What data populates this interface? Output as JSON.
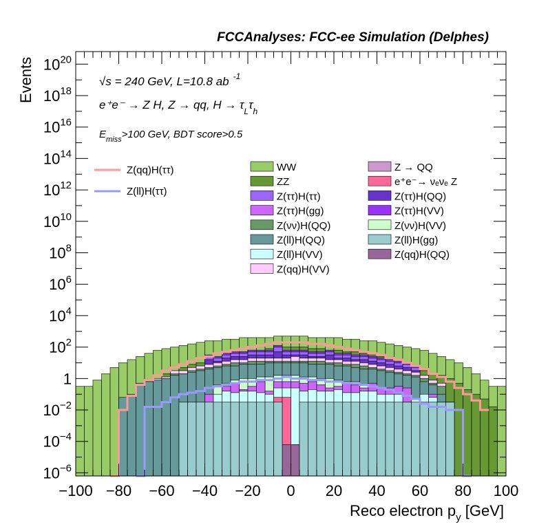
{
  "chart_data": {
    "type": "histogram-stack-log",
    "title": "FCCAnalyses: FCC-ee Simulation (Delphes)",
    "xlabel": "Reco electron p",
    "xlabel_sub": "y",
    "xlabel_unit": " [GeV]",
    "ylabel": "Events",
    "xlim": [
      -100,
      100
    ],
    "ylim_log10": [
      -6.2,
      20.8
    ],
    "x_scale": "linear",
    "y_scale": "log",
    "x_ticks": [
      -100,
      -80,
      -60,
      -40,
      -20,
      0,
      20,
      40,
      60,
      80,
      100
    ],
    "x_tick_labels": [
      "−100",
      "−80",
      "−60",
      "−40",
      "−20",
      "0",
      "20",
      "40",
      "60",
      "80",
      "100"
    ],
    "y_ticks_log10": [
      -6,
      -4,
      -2,
      0,
      2,
      4,
      6,
      8,
      10,
      12,
      14,
      16,
      18,
      20
    ],
    "annotations": {
      "line1_prefix": "√s",
      "line1_rest": " = 240 GeV, L=10.8 ab",
      "line1_sup": "-1",
      "line2": "e⁺e⁻ → Z H, Z → qq, H → τ",
      "line2_sub1": "L",
      "line2_mid": "τ",
      "line2_sub2": "h",
      "line3_prefix": "E",
      "line3_sub": "miss",
      "line3_rest": ">100 GeV, BDT score>0.5"
    },
    "bins": {
      "start": -100,
      "width": 4,
      "count": 50
    },
    "stack": [
      {
        "name": "Z(ll)H(gg)",
        "color": "#99cccc",
        "log10": [
          null,
          null,
          null,
          null,
          null,
          null,
          null,
          null,
          null,
          null,
          null,
          null,
          -1.5,
          -1.5,
          -1.5,
          -1.5,
          -1.5,
          -1.5,
          -1.5,
          -1.5,
          -1.5,
          -1.5,
          -1.5,
          -1.5,
          -6.2,
          -6.2,
          -1.5,
          -1.5,
          -1.5,
          -1.5,
          -1.5,
          -1.5,
          -1.5,
          -1.5,
          -1.5,
          -1.5,
          -1.5,
          -1.5,
          -1.5,
          -1.5,
          -1.5,
          -1.5,
          -1.5,
          -1.5,
          null,
          null,
          null,
          null,
          null,
          null
        ]
      },
      {
        "name": "Z(qq)H(QQ)",
        "color": "#996699",
        "log10": [
          null,
          null,
          null,
          null,
          null,
          null,
          null,
          null,
          null,
          null,
          null,
          null,
          null,
          null,
          null,
          null,
          null,
          null,
          null,
          null,
          null,
          null,
          null,
          null,
          -4.2,
          -4.2,
          null,
          null,
          null,
          null,
          null,
          null,
          null,
          null,
          null,
          null,
          null,
          null,
          null,
          null,
          null,
          null,
          null,
          null,
          null,
          null,
          null,
          null,
          null,
          null
        ]
      },
      {
        "name": "e⁺e⁻→ νₑνₑ Z",
        "color": "#ff6699",
        "log10": [
          null,
          null,
          null,
          null,
          null,
          null,
          null,
          null,
          null,
          null,
          null,
          null,
          null,
          null,
          null,
          null,
          null,
          null,
          null,
          null,
          null,
          null,
          null,
          -1.2,
          -1.2,
          null,
          null,
          null,
          null,
          null,
          null,
          null,
          null,
          null,
          null,
          null,
          null,
          null,
          null,
          null,
          null,
          null,
          null,
          null,
          null,
          null,
          null,
          null,
          null,
          null
        ]
      },
      {
        "name": "Z(ll)H(VV)",
        "color": "#ccffff",
        "log10": [
          null,
          null,
          null,
          null,
          null,
          null,
          null,
          null,
          null,
          null,
          null,
          null,
          null,
          null,
          null,
          null,
          -1.0,
          -0.8,
          -0.9,
          -0.8,
          -0.8,
          -0.9,
          -1.0,
          -0.6,
          -0.6,
          -0.6,
          -0.8,
          -0.7,
          -0.8,
          -0.8,
          -0.7,
          -0.9,
          -0.9,
          -0.8,
          -0.8,
          -1.0,
          -1.0,
          -1.0,
          -1.5,
          -1.3,
          -1.0,
          -1.2,
          -1.5,
          -1.5,
          null,
          null,
          null,
          null,
          null,
          null
        ]
      },
      {
        "name": "Z(ττ)H(gg)",
        "color": "#cc66ff",
        "log10": [
          null,
          null,
          null,
          null,
          null,
          null,
          null,
          null,
          null,
          null,
          null,
          null,
          null,
          null,
          null,
          -1.0,
          -1.5,
          -0.5,
          -0.3,
          -0.7,
          -0.5,
          -0.2,
          -0.8,
          -0.2,
          -0.2,
          -0.2,
          -0.3,
          -0.2,
          -0.4,
          -0.6,
          -0.5,
          -0.3,
          -0.4,
          -0.6,
          -0.3,
          -0.6,
          -0.6,
          -0.5,
          -0.6,
          -1.3,
          -1.2,
          -1.0,
          null,
          null,
          null,
          null,
          null,
          null,
          null,
          null
        ]
      },
      {
        "name": "Z(νν)H(VV)",
        "color": "#ccffcc",
        "log10": [
          null,
          null,
          null,
          null,
          null,
          null,
          null,
          null,
          null,
          null,
          null,
          null,
          null,
          null,
          null,
          null,
          -0.4,
          -0.3,
          -0.1,
          0.0,
          0.0,
          0.1,
          0.1,
          0.2,
          0.2,
          0.2,
          0.1,
          0.1,
          0.0,
          0.0,
          -0.1,
          -0.2,
          -0.2,
          -0.4,
          -0.5,
          -0.6,
          -0.9,
          -1.0,
          null,
          null,
          null,
          null,
          null,
          null,
          null,
          null,
          null,
          null,
          null,
          null
        ]
      },
      {
        "name": "Z(ll)H(QQ)",
        "color": "#669999",
        "log10": [
          null,
          null,
          null,
          null,
          null,
          -1.2,
          -1.0,
          -0.3,
          -0.2,
          -0.1,
          0.0,
          0.2,
          0.3,
          0.4,
          0.5,
          0.6,
          0.7,
          0.8,
          0.8,
          0.9,
          0.9,
          0.9,
          1.0,
          1.0,
          1.0,
          1.0,
          1.0,
          0.9,
          0.9,
          0.9,
          0.8,
          0.8,
          0.7,
          0.6,
          0.6,
          0.5,
          0.4,
          0.3,
          0.2,
          0.1,
          -0.2,
          -0.4,
          -1.0,
          -1.5,
          null,
          null,
          null,
          null,
          null,
          null
        ]
      },
      {
        "name": "Z(νν)H(QQ)",
        "color": "#669966",
        "log10": [
          null,
          null,
          null,
          null,
          null,
          null,
          null,
          null,
          null,
          -0.3,
          -0.2,
          0.3,
          0.3,
          0.5,
          0.6,
          0.7,
          0.8,
          0.9,
          1.0,
          1.0,
          1.1,
          1.1,
          1.1,
          1.1,
          1.1,
          1.1,
          1.1,
          1.1,
          1.1,
          1.0,
          1.0,
          0.9,
          0.9,
          0.8,
          0.7,
          0.6,
          0.5,
          0.4,
          0.3,
          0.2,
          0.0,
          -0.3,
          -0.5,
          null,
          null,
          null,
          null,
          null,
          null,
          null
        ]
      },
      {
        "name": "Z(qq)H(VV)",
        "color": "#ffccff",
        "log10": [
          null,
          null,
          null,
          null,
          null,
          null,
          null,
          null,
          null,
          0.0,
          0.1,
          0.5,
          0.5,
          0.7,
          0.8,
          0.9,
          1.0,
          1.1,
          1.2,
          1.2,
          1.3,
          1.3,
          1.3,
          1.3,
          1.3,
          1.4,
          1.3,
          1.3,
          1.3,
          1.2,
          1.2,
          1.1,
          1.1,
          1.0,
          0.9,
          0.8,
          0.7,
          0.6,
          0.5,
          0.4,
          0.2,
          -0.1,
          -0.3,
          null,
          null,
          null,
          null,
          null,
          null,
          null
        ]
      },
      {
        "name": "Z(ττ)H(QQ)",
        "color": "#6633cc",
        "log10": [
          null,
          null,
          null,
          null,
          null,
          null,
          null,
          null,
          null,
          null,
          null,
          null,
          null,
          null,
          null,
          1.2,
          1.1,
          1.3,
          1.4,
          1.4,
          1.5,
          1.5,
          1.5,
          1.7,
          1.5,
          1.5,
          1.5,
          1.4,
          1.4,
          1.5,
          1.3,
          1.3,
          1.2,
          1.2,
          1.1,
          1.0,
          0.9,
          0.8,
          0.7,
          0.5,
          null,
          null,
          null,
          null,
          null,
          null,
          null,
          null,
          null,
          null
        ]
      },
      {
        "name": "Z(ττ)H(ττ)",
        "color": "#9966ff",
        "log10": [
          null,
          null,
          null,
          null,
          null,
          null,
          null,
          null,
          null,
          null,
          null,
          null,
          null,
          null,
          null,
          1.4,
          1.3,
          1.5,
          1.6,
          1.6,
          1.7,
          1.7,
          1.7,
          2.0,
          1.7,
          1.7,
          1.7,
          1.6,
          1.6,
          1.7,
          1.5,
          1.5,
          1.4,
          1.4,
          1.3,
          1.2,
          1.1,
          1.0,
          0.9,
          0.7,
          null,
          null,
          null,
          null,
          null,
          null,
          null,
          null,
          null,
          null
        ]
      },
      {
        "name": "Z(ττ)H(VV)",
        "color": "#9933ff",
        "log10": [
          null,
          null,
          null,
          null,
          null,
          null,
          null,
          null,
          null,
          null,
          null,
          null,
          null,
          null,
          null,
          1.5,
          1.4,
          1.6,
          1.7,
          1.7,
          1.8,
          1.8,
          1.8,
          2.1,
          1.8,
          1.8,
          1.8,
          1.7,
          1.7,
          1.8,
          1.6,
          1.6,
          1.5,
          1.5,
          1.4,
          1.3,
          1.2,
          1.1,
          1.0,
          0.8,
          null,
          null,
          null,
          null,
          null,
          null,
          null,
          null,
          null,
          null
        ]
      },
      {
        "name": "Z → QQ",
        "color": "#cc99cc",
        "log10": [
          null,
          null,
          null,
          null,
          null,
          null,
          null,
          null,
          null,
          null,
          null,
          null,
          null,
          null,
          null,
          null,
          null,
          null,
          null,
          null,
          null,
          null,
          null,
          1.8,
          null,
          null,
          null,
          1.4,
          null,
          1.5,
          null,
          null,
          null,
          null,
          1.3,
          null,
          null,
          null,
          null,
          null,
          null,
          null,
          null,
          null,
          null,
          null,
          null,
          null,
          null,
          null
        ]
      },
      {
        "name": "ZZ",
        "color": "#669933",
        "log10": [
          -6.2,
          -6.2,
          -6.2,
          -6.2,
          -6.2,
          -2.0,
          -1.2,
          -0.6,
          -0.2,
          0.0,
          0.3,
          0.5,
          0.7,
          0.9,
          1.0,
          1.1,
          1.3,
          1.5,
          1.6,
          1.7,
          1.8,
          1.8,
          1.9,
          2.0,
          2.0,
          2.0,
          2.0,
          1.9,
          1.9,
          1.8,
          1.8,
          1.7,
          1.7,
          1.6,
          1.5,
          1.4,
          1.2,
          1.0,
          0.9,
          0.7,
          0.5,
          0.3,
          0.2,
          0.0,
          -0.3,
          -0.7,
          -1.0,
          -1.3,
          -1.8,
          -6.2
        ]
      },
      {
        "name": "WW",
        "color": "#99cc66",
        "log10": [
          -0.5,
          -0.5,
          -0.1,
          0.3,
          0.7,
          1.0,
          1.2,
          1.4,
          1.6,
          1.8,
          1.9,
          2.0,
          2.1,
          2.2,
          2.3,
          2.4,
          2.4,
          2.5,
          2.5,
          2.6,
          2.6,
          2.6,
          2.6,
          2.7,
          2.7,
          2.7,
          2.7,
          2.6,
          2.6,
          2.6,
          2.6,
          2.5,
          2.5,
          2.4,
          2.4,
          2.3,
          2.2,
          2.1,
          2.0,
          1.9,
          1.8,
          1.6,
          1.4,
          1.2,
          1.0,
          0.7,
          0.3,
          -0.1,
          -0.5,
          -0.5
        ]
      }
    ],
    "signals": [
      {
        "name": "Z(qq)H(ττ)",
        "color": "#ff9999",
        "log10": [
          null,
          null,
          null,
          null,
          -6.2,
          -2.0,
          -1.1,
          -0.4,
          -0.1,
          0.2,
          0.5,
          0.7,
          0.9,
          1.1,
          1.3,
          1.4,
          1.6,
          1.7,
          1.8,
          1.9,
          2.0,
          2.1,
          2.2,
          2.3,
          2.3,
          2.3,
          2.3,
          2.2,
          2.2,
          2.1,
          2.0,
          1.9,
          1.8,
          1.7,
          1.6,
          1.5,
          1.3,
          1.2,
          1.0,
          0.8,
          0.6,
          0.3,
          0.1,
          -0.2,
          -0.6,
          -1.0,
          -1.4,
          -2.0,
          null,
          null
        ]
      },
      {
        "name": "Z(ll)H(ττ)",
        "color": "#9999ff",
        "log10": [
          null,
          null,
          null,
          null,
          null,
          null,
          null,
          -6.2,
          -1.8,
          -1.8,
          -1.5,
          -1.2,
          -1.0,
          -0.9,
          -0.8,
          -0.6,
          -0.5,
          -0.4,
          -0.3,
          -0.2,
          -0.2,
          -0.1,
          -0.1,
          0.0,
          0.1,
          0.0,
          0.0,
          -0.1,
          -0.1,
          -0.2,
          -0.2,
          -0.3,
          -0.3,
          -0.4,
          -0.5,
          -0.6,
          -0.7,
          -0.9,
          -1.1,
          -1.3,
          -1.6,
          -1.8,
          -1.8,
          -2.0,
          -2.0,
          -6.2,
          null,
          null,
          null,
          null
        ]
      }
    ],
    "legend_left": [
      {
        "label": "Z(qq)H(ττ)",
        "color": "#ff9999"
      },
      {
        "label": "Z(ll)H(ττ)",
        "color": "#9999ff"
      }
    ],
    "legend_mid": [
      {
        "label": "WW",
        "color": "#99cc66"
      },
      {
        "label": "ZZ",
        "color": "#669933"
      },
      {
        "label": "Z(ττ)H(ττ)",
        "color": "#9966ff"
      },
      {
        "label": "Z(ττ)H(gg)",
        "color": "#cc66ff"
      },
      {
        "label": "Z(νν)H(QQ)",
        "color": "#669966"
      },
      {
        "label": "Z(ll)H(QQ)",
        "color": "#669999"
      },
      {
        "label": "Z(ll)H(VV)",
        "color": "#ccffff"
      },
      {
        "label": "Z(qq)H(VV)",
        "color": "#ffccff"
      }
    ],
    "legend_right": [
      {
        "label": "Z → QQ",
        "color": "#cc99cc"
      },
      {
        "label": "e⁺e⁻→ νₑνₑ Z",
        "color": "#ff6699"
      },
      {
        "label": "Z(ττ)H(QQ)",
        "color": "#6633cc"
      },
      {
        "label": "Z(ττ)H(VV)",
        "color": "#9933ff"
      },
      {
        "label": "Z(νν)H(VV)",
        "color": "#ccffcc"
      },
      {
        "label": "Z(ll)H(gg)",
        "color": "#99cccc"
      },
      {
        "label": "Z(qq)H(QQ)",
        "color": "#996699"
      }
    ]
  }
}
